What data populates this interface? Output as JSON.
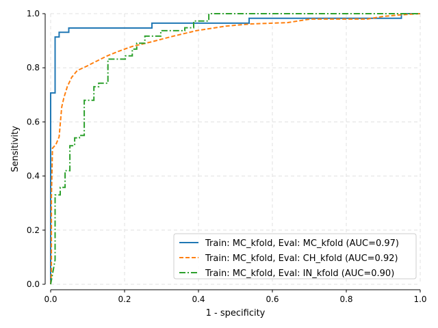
{
  "chart_data": {
    "type": "line",
    "title": "",
    "xlabel": "1 - specificity",
    "ylabel": "Sensitivity",
    "xlim": [
      0,
      1
    ],
    "ylim": [
      0,
      1
    ],
    "xticks": [
      "0.0",
      "0.2",
      "0.4",
      "0.6",
      "0.8",
      "1.0"
    ],
    "yticks": [
      "0.0",
      "0.2",
      "0.4",
      "0.6",
      "0.8",
      "1.0"
    ],
    "grid": true,
    "legend_position": "lower-right",
    "series": [
      {
        "name": "Train: MC_kfold, Eval: MC_kfold (AUC=0.97)",
        "color": "#1f77b4",
        "style": "solid",
        "step": true,
        "x": [
          0,
          0,
          0.012,
          0.012,
          0.023,
          0.023,
          0.049,
          0.049,
          0.274,
          0.274,
          0.537,
          0.537,
          0.949,
          0.949,
          1.0
        ],
        "y": [
          0,
          0.707,
          0.707,
          0.914,
          0.914,
          0.931,
          0.931,
          0.947,
          0.947,
          0.965,
          0.965,
          0.983,
          0.983,
          1.0,
          1.0
        ]
      },
      {
        "name": "Train: MC_kfold, Eval: CH_kfold (AUC=0.92)",
        "color": "#ff7f0e",
        "style": "dashed",
        "x": [
          0,
          0.002,
          0.002,
          0.005,
          0.014,
          0.023,
          0.03,
          0.036,
          0.045,
          0.057,
          0.072,
          0.098,
          0.122,
          0.153,
          0.184,
          0.221,
          0.27,
          0.332,
          0.394,
          0.474,
          0.542,
          0.641,
          0.703,
          0.857,
          0.9,
          0.95,
          1.0
        ],
        "y": [
          0,
          0.04,
          0.32,
          0.503,
          0.516,
          0.545,
          0.655,
          0.69,
          0.73,
          0.765,
          0.79,
          0.806,
          0.823,
          0.844,
          0.861,
          0.879,
          0.895,
          0.917,
          0.937,
          0.954,
          0.962,
          0.967,
          0.98,
          0.98,
          0.99,
          0.996,
          1.0
        ]
      },
      {
        "name": "Train: MC_kfold, Eval: IN_kfold (AUC=0.90)",
        "color": "#2ca02c",
        "style": "dashdot",
        "x": [
          0,
          0.012,
          0.012,
          0.026,
          0.026,
          0.039,
          0.039,
          0.052,
          0.052,
          0.065,
          0.065,
          0.078,
          0.078,
          0.091,
          0.091,
          0.117,
          0.117,
          0.13,
          0.13,
          0.155,
          0.155,
          0.202,
          0.202,
          0.221,
          0.221,
          0.233,
          0.233,
          0.255,
          0.255,
          0.298,
          0.298,
          0.363,
          0.363,
          0.387,
          0.387,
          0.428,
          0.428,
          1.0
        ],
        "y": [
          0,
          0.09,
          0.33,
          0.33,
          0.358,
          0.358,
          0.42,
          0.42,
          0.512,
          0.512,
          0.541,
          0.541,
          0.55,
          0.55,
          0.68,
          0.68,
          0.73,
          0.73,
          0.743,
          0.743,
          0.832,
          0.832,
          0.844,
          0.844,
          0.869,
          0.869,
          0.891,
          0.891,
          0.917,
          0.917,
          0.937,
          0.937,
          0.948,
          0.948,
          0.973,
          0.973,
          1.0,
          1.0
        ]
      }
    ]
  }
}
